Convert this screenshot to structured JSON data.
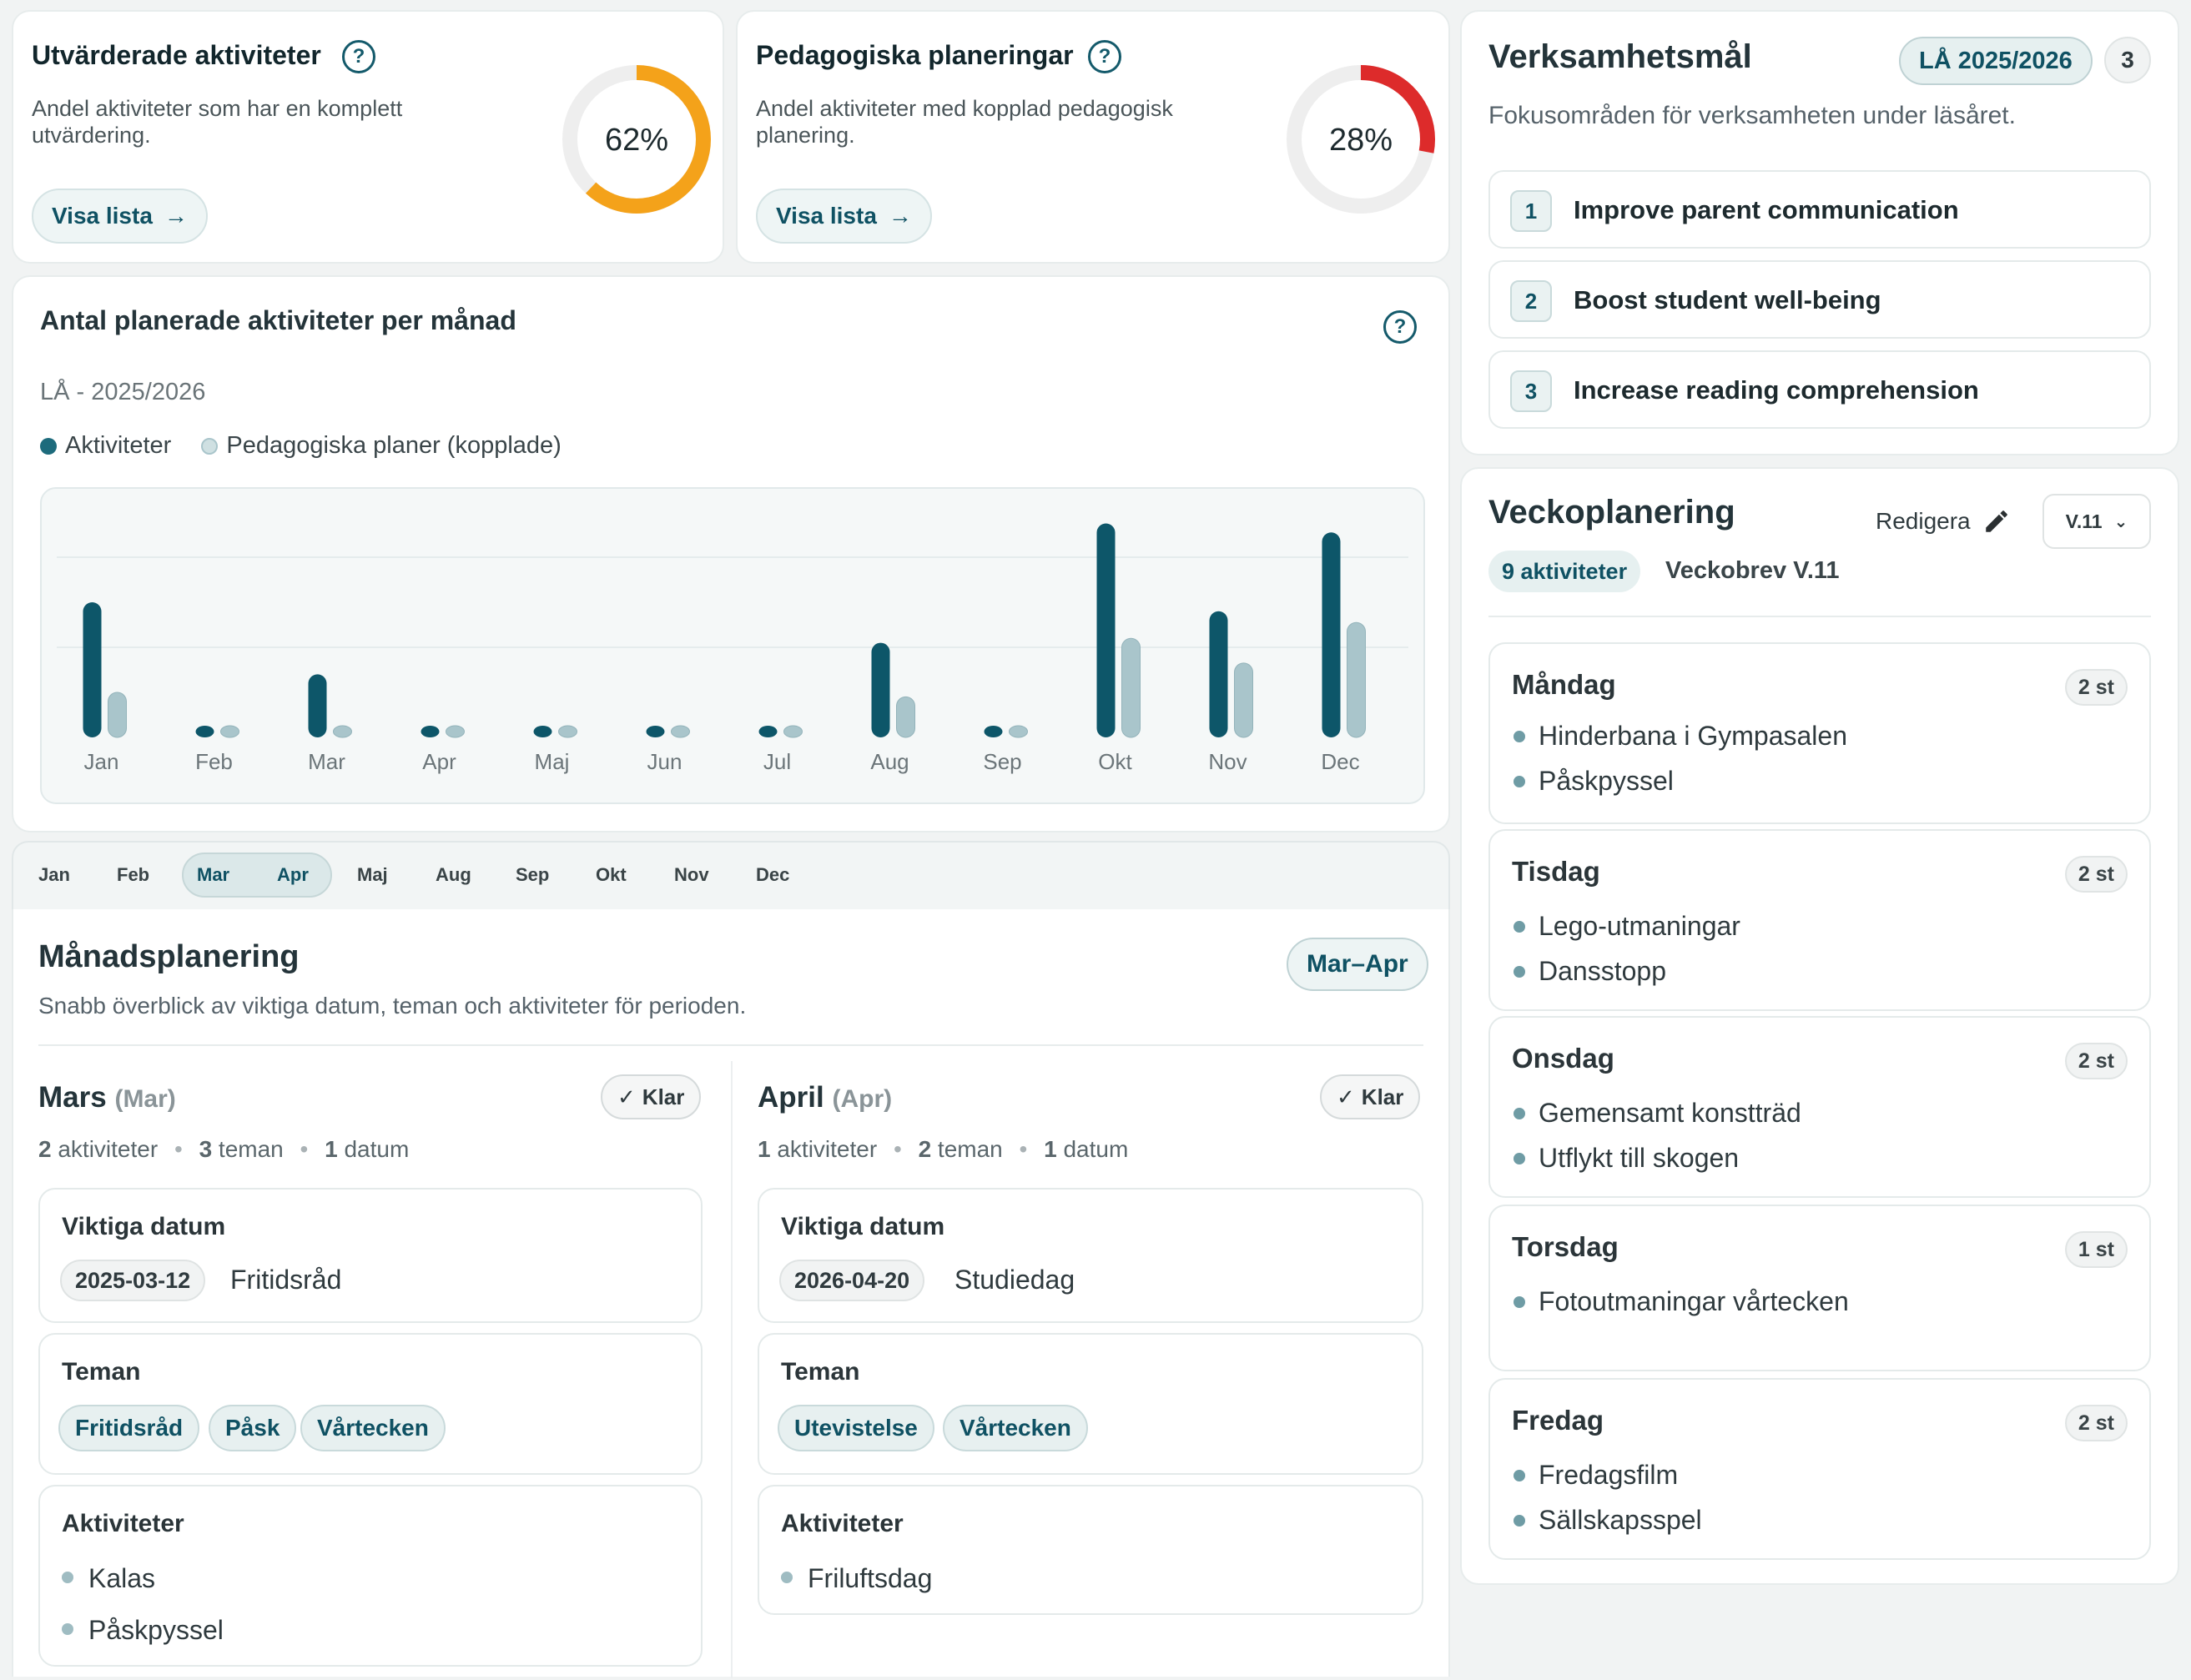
{
  "kpi": [
    {
      "title": "Utvärderade aktiviteter",
      "desc": "Andel aktiviteter som har en komplett utvärdering.",
      "percent": 62,
      "percent_label": "62%",
      "button": "Visa lista",
      "color": "#f4a21a"
    },
    {
      "title": "Pedagogiska planeringar",
      "desc": "Andel aktiviteter med kopplad pedagogisk planering.",
      "percent": 28,
      "percent_label": "28%",
      "button": "Visa lista",
      "color": "#dd2b2b"
    }
  ],
  "chart": {
    "help": "?",
    "title": "Antal planerade aktiviteter per månad",
    "subtitle": "LÅ - 2025/2026",
    "legend": [
      "Aktiviteter",
      "Pedagogiska planer (kopplade)"
    ],
    "colors": {
      "activities": "#0d5669",
      "plans": "#a9c5cb"
    }
  },
  "chart_data": {
    "type": "bar",
    "title": "Antal planerade aktiviteter per månad",
    "categories": [
      "Jan",
      "Feb",
      "Mar",
      "Apr",
      "Maj",
      "Jun",
      "Jul",
      "Aug",
      "Sep",
      "Okt",
      "Nov",
      "Dec"
    ],
    "series": [
      {
        "name": "Aktiviteter",
        "values": [
          6,
          0,
          2.8,
          0,
          0,
          0,
          0,
          4.2,
          0,
          9.5,
          5.6,
          9.1
        ]
      },
      {
        "name": "Pedagogiska planer (kopplade)",
        "values": [
          2,
          0,
          0,
          0,
          0,
          0,
          0,
          1.8,
          0,
          4.4,
          3.3,
          5.1
        ]
      }
    ],
    "ylim": [
      0,
      10
    ],
    "grid": true,
    "legend_position": "top-left"
  },
  "month_tabs": [
    "Jan",
    "Feb",
    "Mar",
    "Apr",
    "Maj",
    "Aug",
    "Sep",
    "Okt",
    "Nov",
    "Dec"
  ],
  "monthly": {
    "title": "Månadsplanering",
    "subtitle": "Snabb överblick av viktiga datum, teman och aktiviteter för perioden.",
    "range_badge": "Mar–Apr",
    "months": [
      {
        "name": "Mars",
        "abbr": "(Mar)",
        "status": "Klar",
        "stats": {
          "activities_n": "2",
          "activities_label": "aktiviteter",
          "themes_n": "3",
          "themes_label": "teman",
          "dates_n": "1",
          "dates_label": "datum"
        },
        "dates_title": "Viktiga datum",
        "date": "2025-03-12",
        "date_label": "Fritidsråd",
        "themes_title": "Teman",
        "themes": [
          "Fritidsråd",
          "Påsk",
          "Vårtecken"
        ],
        "activities_title": "Aktiviteter",
        "activities": [
          "Kalas",
          "Påskpyssel"
        ]
      },
      {
        "name": "April",
        "abbr": "(Apr)",
        "status": "Klar",
        "stats": {
          "activities_n": "1",
          "activities_label": "aktiviteter",
          "themes_n": "2",
          "themes_label": "teman",
          "dates_n": "1",
          "dates_label": "datum"
        },
        "dates_title": "Viktiga datum",
        "date": "2026-04-20",
        "date_label": "Studiedag",
        "themes_title": "Teman",
        "themes": [
          "Utevistelse",
          "Vårtecken"
        ],
        "activities_title": "Aktiviteter",
        "activities": [
          "Friluftsdag"
        ]
      }
    ]
  },
  "goals": {
    "title": "Verksamhetsmål",
    "year_badge": "LÅ 2025/2026",
    "count": "3",
    "subtitle": "Fokusområden för verksamheten under läsåret.",
    "items": [
      {
        "num": "1",
        "label": "Improve parent communication"
      },
      {
        "num": "2",
        "label": "Boost student well-being"
      },
      {
        "num": "3",
        "label": "Increase reading comprehension"
      }
    ]
  },
  "weekly": {
    "title": "Veckoplanering",
    "edit": "Redigera",
    "week_select": "V.11",
    "activities_badge": "9 aktiviteter",
    "letter": "Veckobrev V.11",
    "days": [
      {
        "name": "Måndag",
        "count": "2 st",
        "items": [
          "Hinderbana i Gympasalen",
          "Påskpyssel"
        ]
      },
      {
        "name": "Tisdag",
        "count": "2 st",
        "items": [
          "Lego-utmaningar",
          "Dansstopp"
        ]
      },
      {
        "name": "Onsdag",
        "count": "2 st",
        "items": [
          "Gemensamt konstträd",
          "Utflykt till skogen"
        ]
      },
      {
        "name": "Torsdag",
        "count": "1 st",
        "items": [
          "Fotoutmaningar vårtecken"
        ]
      },
      {
        "name": "Fredag",
        "count": "2 st",
        "items": [
          "Fredagsfilm",
          "Sällskapsspel"
        ]
      }
    ]
  }
}
